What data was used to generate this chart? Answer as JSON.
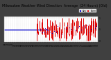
{
  "title": "Milwaukee Weather Wind Direction  Average  (24 Hours) (Old)",
  "bg_color": "#404040",
  "plot_bg_color": "#ffffff",
  "blue_hline_y": 0.5,
  "blue_hline_x_start": 0,
  "blue_hline_x_end": 44,
  "bar_color": "#dd0000",
  "dot_color": "#0000cc",
  "ylim": [
    -0.05,
    1.05
  ],
  "xlim": [
    0,
    96
  ],
  "title_fontsize": 3.5,
  "tick_fontsize": 2.2,
  "grid_color": "#aaaaaa"
}
